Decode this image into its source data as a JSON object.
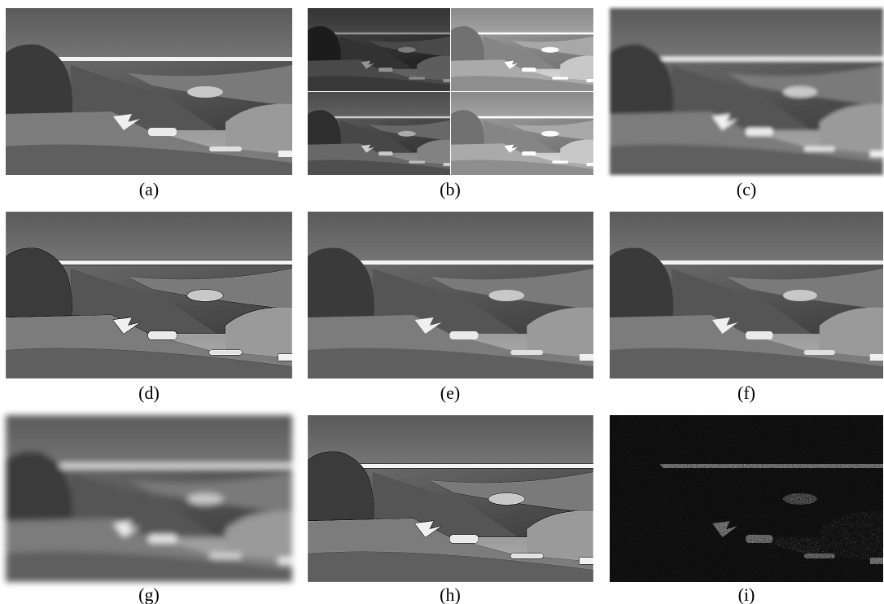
{
  "captions": [
    "(a)",
    "(b)",
    "(c)",
    "(d)",
    "(e)",
    "(f)",
    "(g)",
    "(h)",
    "(i)"
  ]
}
